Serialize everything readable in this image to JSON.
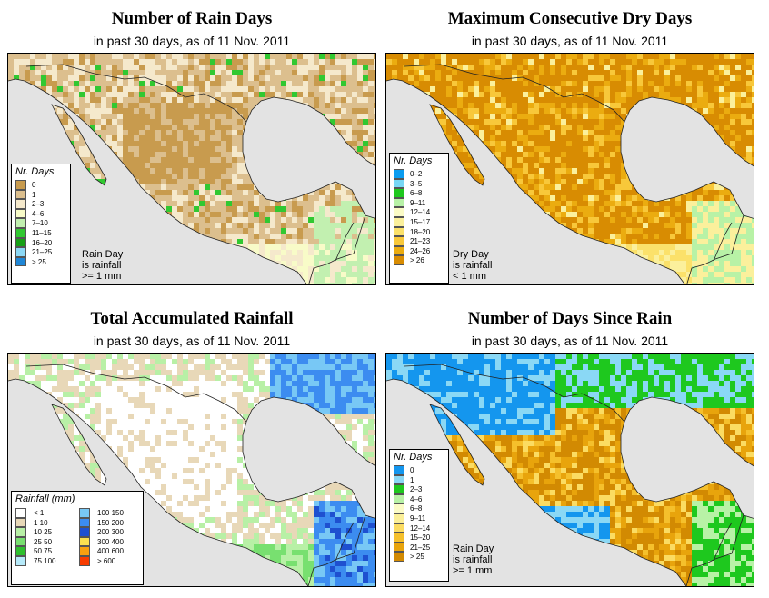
{
  "panels": [
    {
      "title": "Number of Rain Days",
      "subtitle": "in past 30 days, as of  11 Nov. 2011",
      "legend_title": "Nr. Days",
      "legend": [
        {
          "label": "0",
          "color": "#c89b4e"
        },
        {
          "label": "1",
          "color": "#dcbf8e"
        },
        {
          "label": "2–3",
          "color": "#f5e9cc"
        },
        {
          "label": "4–6",
          "color": "#f8fbc8"
        },
        {
          "label": "7–10",
          "color": "#c2f0b0"
        },
        {
          "label": "11–15",
          "color": "#31c831"
        },
        {
          "label": "16–20",
          "color": "#16a016"
        },
        {
          "label": "21–25",
          "color": "#8cd8f5"
        },
        {
          "label": "> 25",
          "color": "#1f86d6"
        }
      ],
      "note": [
        "Rain Day",
        "is rainfall",
        ">= 1 mm"
      ]
    },
    {
      "title": "Maximum Consecutive Dry Days",
      "subtitle": "in past 30 days, as of  11 Nov. 2011",
      "legend_title": "Nr. Days",
      "legend": [
        {
          "label": "0–2",
          "color": "#0a9cf0"
        },
        {
          "label": "3–5",
          "color": "#78d7f5"
        },
        {
          "label": "6–8",
          "color": "#1ec81e"
        },
        {
          "label": "9–11",
          "color": "#b8f2a6"
        },
        {
          "label": "12–14",
          "color": "#fbfbc6"
        },
        {
          "label": "15–17",
          "color": "#fbf09c"
        },
        {
          "label": "18–20",
          "color": "#fbe16a"
        },
        {
          "label": "21–23",
          "color": "#f8c83a"
        },
        {
          "label": "24–26",
          "color": "#ebac10"
        },
        {
          "label": "> 26",
          "color": "#d88c02"
        }
      ],
      "note": [
        "Dry Day",
        "is rainfall",
        "< 1 mm"
      ]
    },
    {
      "title": "Total Accumulated Rainfall",
      "subtitle": "in past 30 days, as of  11 Nov. 2011",
      "legend_title": "Rainfall (mm)",
      "legend_left": [
        {
          "label": "< 1",
          "color": "#ffffff"
        },
        {
          "label": "1    10",
          "color": "#e8d8b8"
        },
        {
          "label": "10    25",
          "color": "#b8f0a6"
        },
        {
          "label": "25    50",
          "color": "#78e070"
        },
        {
          "label": "50    75",
          "color": "#2ec02e"
        },
        {
          "label": "75  100",
          "color": "#b6eafa"
        }
      ],
      "legend_right": [
        {
          "label": "100  150",
          "color": "#78c8f5"
        },
        {
          "label": "150  200",
          "color": "#3c8cf0"
        },
        {
          "label": "200  300",
          "color": "#1e50d0"
        },
        {
          "label": "300  400",
          "color": "#fbe050"
        },
        {
          "label": "400  600",
          "color": "#f8a010"
        },
        {
          "label": "> 600",
          "color": "#f83c00"
        }
      ]
    },
    {
      "title": "Number of Days Since Rain",
      "subtitle": "in past 30 days, as of  11 Nov. 2011",
      "legend_title": "Nr. Days",
      "legend": [
        {
          "label": "0",
          "color": "#1496ee"
        },
        {
          "label": "1",
          "color": "#8ad8f5"
        },
        {
          "label": "2–3",
          "color": "#1ec81e"
        },
        {
          "label": "4–6",
          "color": "#b8f2a6"
        },
        {
          "label": "6–8",
          "color": "#fbfbc6"
        },
        {
          "label": "9–11",
          "color": "#fbef98"
        },
        {
          "label": "12–14",
          "color": "#fbdc62"
        },
        {
          "label": "15–20",
          "color": "#f5c02c"
        },
        {
          "label": "21–25",
          "color": "#e8a40c"
        },
        {
          "label": "> 25",
          "color": "#d28a02"
        }
      ],
      "note": [
        "Rain Day",
        "is rainfall",
        ">= 1 mm"
      ]
    }
  ],
  "colors": {
    "ocean": "#e3e3e3",
    "border": "#222222"
  }
}
